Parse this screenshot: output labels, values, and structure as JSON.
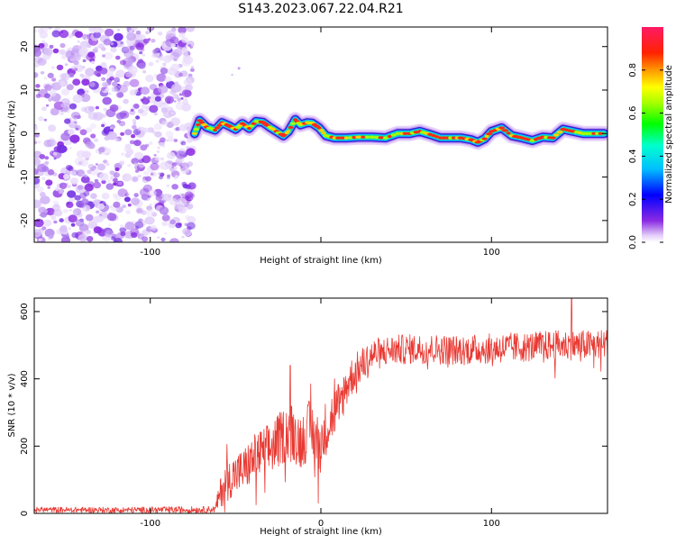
{
  "page": {
    "title": "S143.2023.067.22.04.R21"
  },
  "colors": {
    "snr_line": "#e83a33",
    "axis": "#000000",
    "background": "#ffffff",
    "noise": "#8a2be2"
  },
  "chart_data": [
    {
      "type": "heatmap",
      "xlabel": "Height of straight line (km)",
      "ylabel": "Frequency (Hz)",
      "xlim": [
        -168,
        168
      ],
      "ylim": [
        -25,
        24.5
      ],
      "x_ticks": [
        -100,
        0,
        100
      ],
      "x_tick_labels": [
        "-100",
        "",
        "100"
      ],
      "y_ticks": [
        -20,
        -10,
        0,
        10,
        20
      ],
      "y_tick_labels": [
        "-20",
        "-10",
        "0",
        "10",
        "20"
      ],
      "colorbar": {
        "label": "Normalized spectral amplitude",
        "range": [
          0,
          1
        ],
        "ticks": [
          0.0,
          0.2,
          0.4,
          0.6,
          0.8
        ],
        "tick_labels": [
          "0.0",
          "0.2",
          "0.4",
          "0.6",
          "0.8"
        ],
        "colormap": "hsv-like (violet-blue-cyan-green-yellow-red-magenta)"
      },
      "description_of_signal": {
        "noise_region_x": [
          -168,
          -75
        ],
        "ridge_points": [
          [
            -74,
            0
          ],
          [
            -71,
            3
          ],
          [
            -67,
            1.5
          ],
          [
            -62,
            0.8
          ],
          [
            -58,
            2.5
          ],
          [
            -54,
            1.8
          ],
          [
            -50,
            1
          ],
          [
            -46,
            2.3
          ],
          [
            -42,
            1.2
          ],
          [
            -38,
            2.8
          ],
          [
            -34,
            2.6
          ],
          [
            -30,
            1.5
          ],
          [
            -26,
            0.5
          ],
          [
            -22,
            -0.5
          ],
          [
            -19,
            0.5
          ],
          [
            -15,
            3.2
          ],
          [
            -12,
            2
          ],
          [
            -8,
            2.5
          ],
          [
            -5,
            2.4
          ],
          [
            -1,
            1.3
          ],
          [
            3,
            -0.5
          ],
          [
            8,
            -1
          ],
          [
            15,
            -1
          ],
          [
            22,
            -0.8
          ],
          [
            30,
            -0.8
          ],
          [
            38,
            -1
          ],
          [
            45,
            0
          ],
          [
            52,
            0
          ],
          [
            58,
            0.5
          ],
          [
            64,
            -0.2
          ],
          [
            70,
            -1
          ],
          [
            76,
            -1
          ],
          [
            82,
            -1
          ],
          [
            88,
            -1.4
          ],
          [
            92,
            -2
          ],
          [
            96,
            -1.2
          ],
          [
            100,
            0.5
          ],
          [
            106,
            1.3
          ],
          [
            112,
            -0.5
          ],
          [
            118,
            -1
          ],
          [
            124,
            -1.6
          ],
          [
            130,
            -0.8
          ],
          [
            136,
            -1
          ],
          [
            142,
            1
          ],
          [
            148,
            0.5
          ],
          [
            154,
            0
          ],
          [
            160,
            0
          ],
          [
            166,
            0
          ]
        ]
      }
    },
    {
      "type": "line",
      "xlabel": "Height of straight line (km)",
      "ylabel": "SNR (10 * v/v)",
      "xlim": [
        -168,
        168
      ],
      "ylim": [
        0,
        640
      ],
      "x_ticks": [
        -100,
        0,
        100
      ],
      "x_tick_labels": [
        "-100",
        "0",
        "100"
      ],
      "y_ticks": [
        0,
        200,
        400,
        600
      ],
      "y_tick_labels": [
        "0",
        "200",
        "400",
        "600"
      ],
      "series": [
        {
          "envelope": {
            "x": [
              -168,
              -120,
              -70,
              -62,
              -58,
              -52,
              -45,
              -38,
              -30,
              -22,
              -18,
              -12,
              -6,
              -1,
              3,
              8,
              12,
              16,
              20,
              25,
              30,
              40,
              60,
              80,
              100,
              120,
              140,
              160,
              168
            ],
            "y": [
              11,
              10,
              11,
              12,
              75,
              110,
              130,
              170,
              190,
              230,
              250,
              215,
              255,
              200,
              255,
              300,
              340,
              390,
              420,
              445,
              470,
              485,
              490,
              485,
              490,
              495,
              500,
              500,
              505
            ]
          },
          "spread": {
            "x": [
              -168,
              -62,
              -58,
              -30,
              0,
              20,
              40,
              168
            ],
            "y": [
              8,
              10,
              55,
              80,
              90,
              55,
              45,
              45
            ]
          },
          "peaks": {
            "x": [
              -55,
              -18,
              -6,
              8,
              147
            ],
            "y": [
              205,
              440,
              385,
              400,
              640
            ]
          }
        }
      ]
    }
  ]
}
